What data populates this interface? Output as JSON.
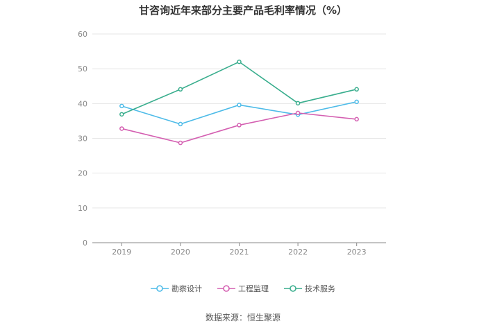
{
  "chart_data": {
    "type": "line",
    "title": "甘咨询近年来部分主要产品毛利率情况（%）",
    "x": [
      "2019",
      "2020",
      "2021",
      "2022",
      "2023"
    ],
    "ylim": [
      0,
      60
    ],
    "yticks": [
      0,
      10,
      20,
      30,
      40,
      50,
      60
    ],
    "grid": true,
    "legend_position": "bottom",
    "series": [
      {
        "name": "勘察设计",
        "color": "#4dbbe8",
        "values": [
          39.3,
          34.1,
          39.6,
          36.8,
          40.5
        ]
      },
      {
        "name": "工程监理",
        "color": "#d45fb1",
        "values": [
          32.8,
          28.7,
          33.8,
          37.3,
          35.5
        ]
      },
      {
        "name": "技术服务",
        "color": "#3aae8e",
        "values": [
          36.9,
          44.1,
          52.0,
          40.1,
          44.1
        ]
      }
    ]
  },
  "source": "数据来源：恒生聚源"
}
